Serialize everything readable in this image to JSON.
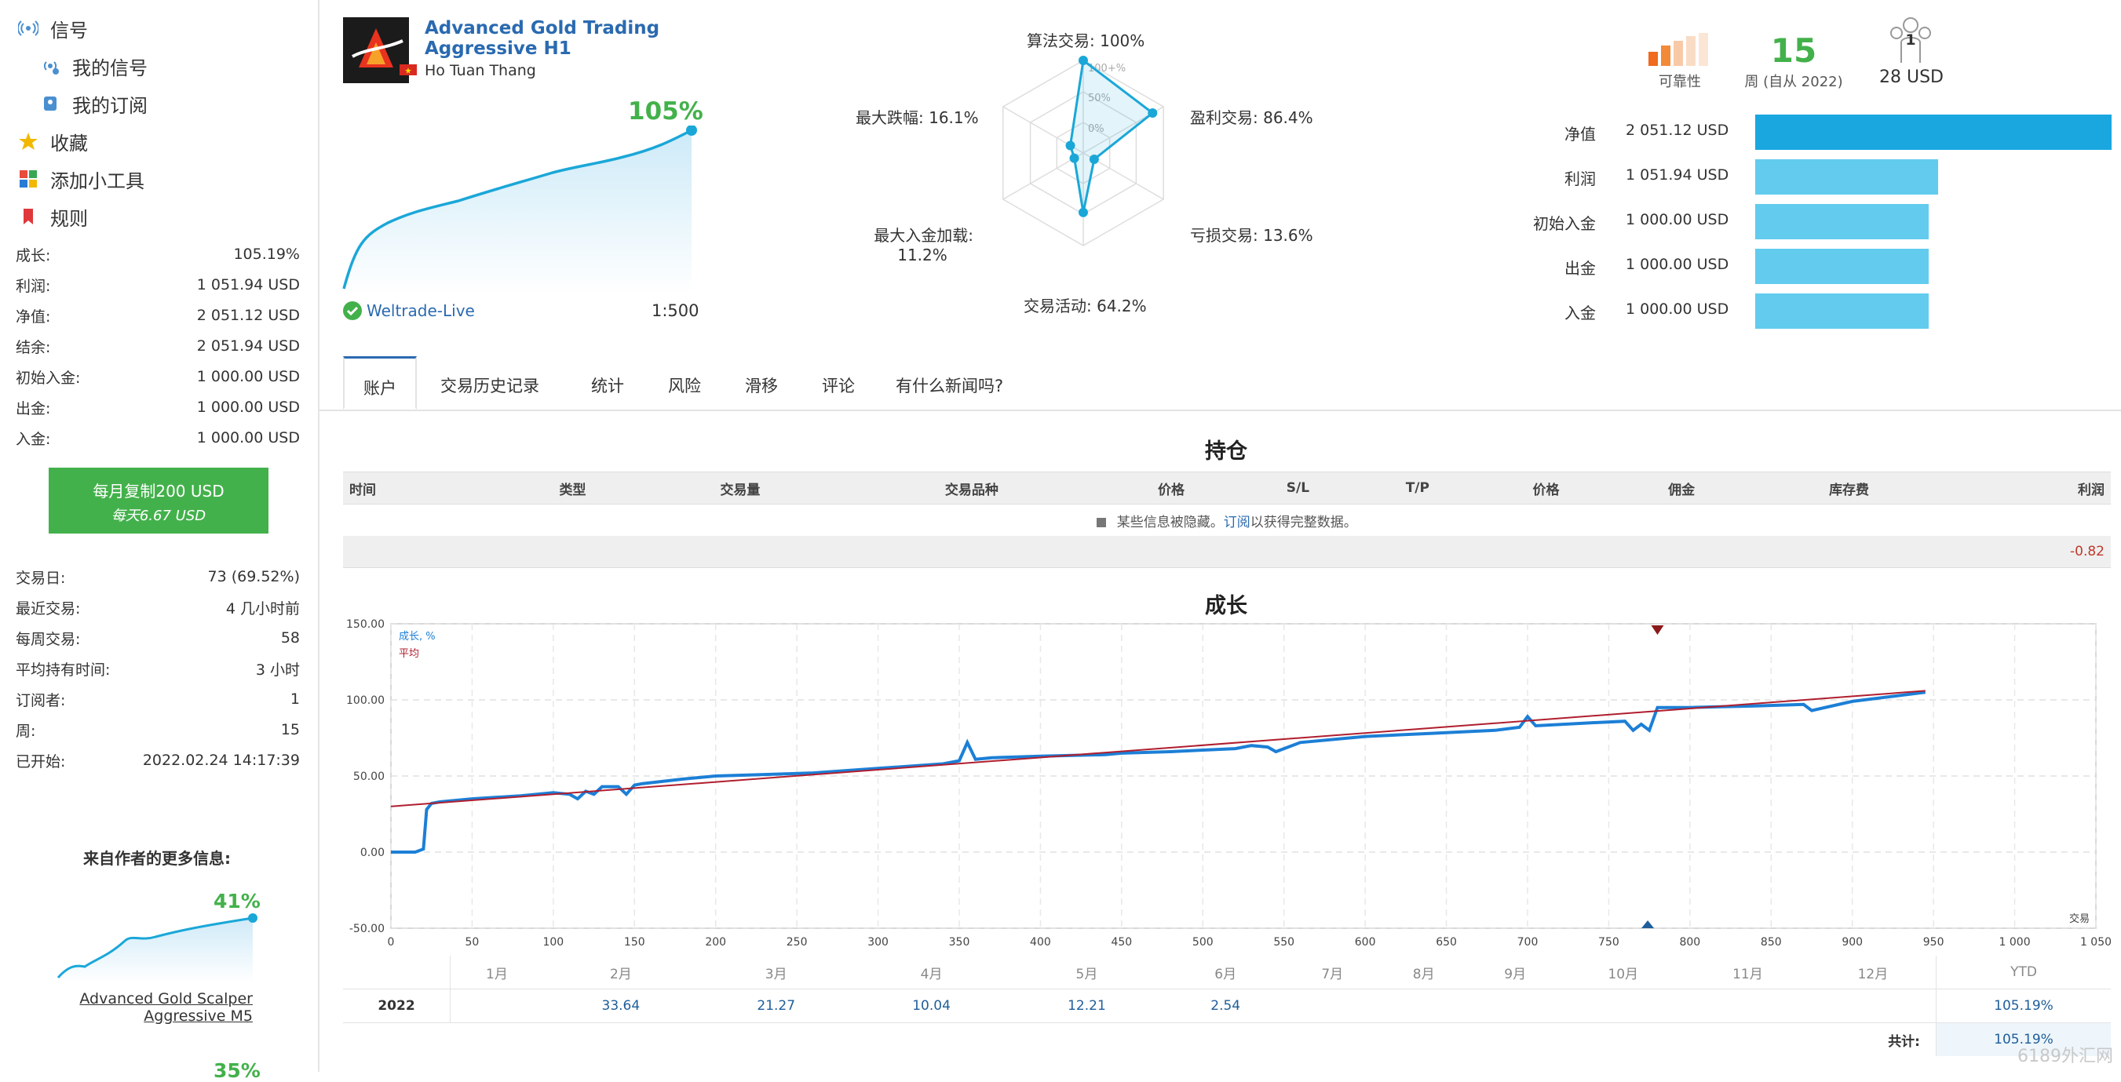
{
  "sidebar": {
    "nav": [
      {
        "label": "信号",
        "icon": "signal-icon"
      },
      {
        "label": "我的信号",
        "icon": "my-signal-icon"
      },
      {
        "label": "我的订阅",
        "icon": "subscription-icon"
      },
      {
        "label": "收藏",
        "icon": "star-icon"
      },
      {
        "label": "添加小工具",
        "icon": "widgets-icon"
      },
      {
        "label": "规则",
        "icon": "bookmark-icon"
      }
    ],
    "stats": [
      {
        "label": "成长:",
        "value": "105.19%"
      },
      {
        "label": "利润:",
        "value": "1 051.94 USD"
      },
      {
        "label": "净值:",
        "value": "2 051.12 USD"
      },
      {
        "label": "结余:",
        "value": "2 051.94 USD"
      },
      {
        "label": "初始入金:",
        "value": "1 000.00 USD"
      },
      {
        "label": "出金:",
        "value": "1 000.00 USD"
      },
      {
        "label": "入金:",
        "value": "1 000.00 USD"
      }
    ],
    "copy_button": {
      "line1": "每月复制200 USD",
      "line2": "每天6.67 USD"
    },
    "stats2": [
      {
        "label": "交易日:",
        "value": "73 (69.52%)"
      },
      {
        "label": "最近交易:",
        "value": "4 几小时前"
      },
      {
        "label": "每周交易:",
        "value": "58"
      },
      {
        "label": "平均持有时间:",
        "value": "3 小时"
      },
      {
        "label": "订阅者:",
        "value": "1"
      },
      {
        "label": "周:",
        "value": "15"
      },
      {
        "label": "已开始:",
        "value": "2022.02.24 14:17:39"
      }
    ],
    "more_title": "来自作者的更多信息:",
    "more_pct": "41%",
    "more_pct2": "35%",
    "more_name_1": "Advanced Gold Scalper",
    "more_name_2": "Aggressive M5",
    "colors": {
      "green": "#43b14b",
      "accent": "#1aa7d8"
    }
  },
  "header": {
    "title_line1": "Advanced Gold Trading",
    "title_line2": "Aggressive H1",
    "author": "Ho Tuan Thang",
    "growth": "105%",
    "broker": "Weltrade-Live",
    "leverage": "1:500"
  },
  "radar": {
    "labels": {
      "algo": "算法交易: 100%",
      "profit": "盈利交易: 86.4%",
      "loss": "亏损交易: 13.6%",
      "activity": "交易活动: 64.2%",
      "deposit_l1": "最大入金加载:",
      "deposit_l2": "11.2%",
      "drawdown": "最大跌幅: 16.1%"
    },
    "ring_labels": [
      "100+%",
      "50%",
      "0%"
    ],
    "values": {
      "algo": 100,
      "profit": 86.4,
      "loss": 13.6,
      "activity": 64.2,
      "deposit": 11.2,
      "drawdown": 16.1
    }
  },
  "summary": {
    "reliability_label": "可靠性",
    "weeks_value": "15",
    "weeks_label": "周 (自从 2022)",
    "subscribers_count": "1",
    "subscribers_cost": "28 USD",
    "bars": [
      {
        "label": "净值",
        "value": "2 051.12 USD",
        "amount": 2051.12,
        "color": "#1aa7e0"
      },
      {
        "label": "利润",
        "value": "1 051.94 USD",
        "amount": 1051.94,
        "color": "#62cbee"
      },
      {
        "label": "初始入金",
        "value": "1 000.00 USD",
        "amount": 1000.0,
        "color": "#62cbee"
      },
      {
        "label": "出金",
        "value": "1 000.00 USD",
        "amount": 1000.0,
        "color": "#62cbee"
      },
      {
        "label": "入金",
        "value": "1 000.00 USD",
        "amount": 1000.0,
        "color": "#62cbee"
      }
    ]
  },
  "tabs": [
    "账户",
    "交易历史记录",
    "统计",
    "风险",
    "滑移",
    "评论",
    "有什么新闻吗?"
  ],
  "positions": {
    "title": "持仓",
    "columns": [
      "时间",
      "类型",
      "交易量",
      "交易品种",
      "价格",
      "S/L",
      "T/P",
      "价格",
      "佣金",
      "库存费",
      "利润"
    ],
    "hidden_text": "某些信息被隐藏。",
    "subscribe_link": "订阅",
    "hidden_suffix": "以获得完整数据。",
    "total": "-0.82"
  },
  "growth_chart": {
    "title": "成长",
    "legend_growth": "成长, %",
    "legend_avg": "平均",
    "corner_label": "交易"
  },
  "chart_data": {
    "type": "line",
    "title": "成长",
    "xlabel": "交易",
    "ylabel": "",
    "xlim": [
      0,
      1050
    ],
    "ylim": [
      -50,
      150
    ],
    "xticks": [
      "0",
      "50",
      "100",
      "150",
      "200",
      "250",
      "300",
      "350",
      "400",
      "450",
      "500",
      "550",
      "600",
      "650",
      "700",
      "750",
      "800",
      "850",
      "900",
      "950",
      "1 000",
      "1 050"
    ],
    "yticks": [
      "150.00",
      "100.00",
      "50.00",
      "0.00",
      "-50.00"
    ],
    "series": [
      {
        "name": "成长, %",
        "color": "#1c7fd6",
        "x": [
          0,
          15,
          20,
          22,
          25,
          30,
          50,
          80,
          100,
          110,
          115,
          120,
          125,
          130,
          140,
          145,
          150,
          155,
          180,
          200,
          230,
          260,
          300,
          340,
          350,
          355,
          360,
          370,
          400,
          440,
          450,
          480,
          500,
          520,
          530,
          540,
          545,
          560,
          600,
          640,
          680,
          695,
          700,
          705,
          740,
          760,
          765,
          770,
          775,
          780,
          800,
          840,
          870,
          875,
          900,
          945
        ],
        "y": [
          0,
          0,
          2,
          28,
          32,
          33,
          35,
          37,
          39,
          38,
          35,
          40,
          38,
          43,
          43,
          38,
          44,
          45,
          48,
          50,
          51,
          52,
          55,
          58,
          60,
          72,
          61,
          62,
          63,
          64,
          65,
          66,
          67,
          68,
          70,
          69,
          66,
          72,
          76,
          78,
          80,
          82,
          89,
          83,
          85,
          86,
          80,
          84,
          80,
          95,
          95,
          96,
          97,
          93,
          99,
          105
        ]
      },
      {
        "name": "平均",
        "color": "#b01e2e",
        "x": [
          0,
          945
        ],
        "y": [
          30,
          106
        ]
      }
    ]
  },
  "monthly": {
    "months": [
      "1月",
      "2月",
      "3月",
      "4月",
      "5月",
      "6月",
      "7月",
      "8月",
      "9月",
      "10月",
      "11月",
      "12月"
    ],
    "ytd_label": "YTD",
    "year": "2022",
    "values": [
      "",
      "33.64",
      "21.27",
      "10.04",
      "12.21",
      "2.54",
      "",
      "",
      "",
      "",
      "",
      ""
    ],
    "ytd": "105.19%",
    "total_label": "共计:",
    "total": "105.19%"
  },
  "watermark": "6189外汇网"
}
